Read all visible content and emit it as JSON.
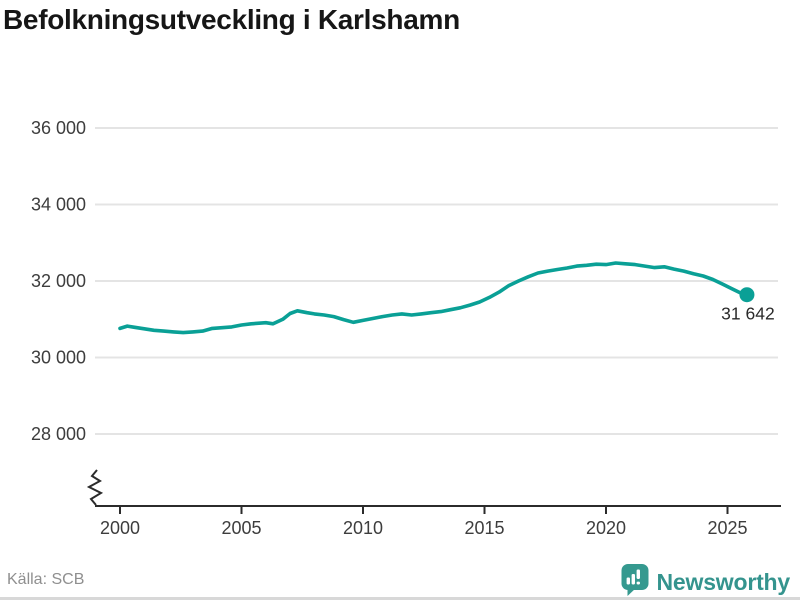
{
  "title": "Befolkningsutveckling i Karlshamn",
  "source": "Källa: SCB",
  "branding": {
    "name": "Newsworthy",
    "icon": "newsworthy-speech-bubble-barchart-icon",
    "text_color": "#35948e",
    "icon_bg": "#35998f"
  },
  "colors": {
    "line": "#0aa096",
    "grid": "#e4e4e4",
    "axis": "#2b2b2b",
    "tick_text": "#3d3d3d",
    "end_label_text": "#2b2b2b"
  },
  "chart_data": {
    "type": "line",
    "title": "Befolkningsutveckling i Karlshamn",
    "xlabel": "",
    "ylabel": "",
    "grid": "horizontal",
    "legend": "none",
    "axis_break": true,
    "xlim": [
      1999.5,
      2027
    ],
    "ylim": [
      28000,
      36000
    ],
    "x_ticks": [
      {
        "value": 2000,
        "label": "2000"
      },
      {
        "value": 2005,
        "label": "2005"
      },
      {
        "value": 2010,
        "label": "2010"
      },
      {
        "value": 2015,
        "label": "2015"
      },
      {
        "value": 2020,
        "label": "2020"
      },
      {
        "value": 2025,
        "label": "2025"
      }
    ],
    "y_ticks": [
      {
        "value": 28000,
        "label": "28 000"
      },
      {
        "value": 30000,
        "label": "30 000"
      },
      {
        "value": 32000,
        "label": "32 000"
      },
      {
        "value": 34000,
        "label": "34 000"
      },
      {
        "value": 36000,
        "label": "36 000"
      }
    ],
    "series": [
      {
        "name": "population",
        "color": "#0aa096",
        "end_label": "31 642",
        "end_value": 31642,
        "points": [
          [
            2000.0,
            30760
          ],
          [
            2000.3,
            30820
          ],
          [
            2000.6,
            30790
          ],
          [
            2001.0,
            30750
          ],
          [
            2001.4,
            30710
          ],
          [
            2001.8,
            30690
          ],
          [
            2002.2,
            30670
          ],
          [
            2002.6,
            30650
          ],
          [
            2003.0,
            30670
          ],
          [
            2003.4,
            30690
          ],
          [
            2003.8,
            30760
          ],
          [
            2004.2,
            30780
          ],
          [
            2004.6,
            30800
          ],
          [
            2005.0,
            30850
          ],
          [
            2005.4,
            30880
          ],
          [
            2006.0,
            30910
          ],
          [
            2006.3,
            30880
          ],
          [
            2006.7,
            31000
          ],
          [
            2007.0,
            31150
          ],
          [
            2007.3,
            31220
          ],
          [
            2007.7,
            31170
          ],
          [
            2008.0,
            31140
          ],
          [
            2008.4,
            31110
          ],
          [
            2008.8,
            31070
          ],
          [
            2009.2,
            30990
          ],
          [
            2009.6,
            30920
          ],
          [
            2010.0,
            30970
          ],
          [
            2010.4,
            31020
          ],
          [
            2010.8,
            31070
          ],
          [
            2011.2,
            31110
          ],
          [
            2011.6,
            31140
          ],
          [
            2012.0,
            31110
          ],
          [
            2012.4,
            31140
          ],
          [
            2012.8,
            31170
          ],
          [
            2013.2,
            31200
          ],
          [
            2013.6,
            31250
          ],
          [
            2014.0,
            31300
          ],
          [
            2014.4,
            31370
          ],
          [
            2014.8,
            31450
          ],
          [
            2015.2,
            31570
          ],
          [
            2015.6,
            31710
          ],
          [
            2016.0,
            31880
          ],
          [
            2016.4,
            32000
          ],
          [
            2016.8,
            32110
          ],
          [
            2017.2,
            32210
          ],
          [
            2017.6,
            32260
          ],
          [
            2018.0,
            32300
          ],
          [
            2018.4,
            32340
          ],
          [
            2018.8,
            32390
          ],
          [
            2019.2,
            32410
          ],
          [
            2019.6,
            32440
          ],
          [
            2020.0,
            32430
          ],
          [
            2020.4,
            32470
          ],
          [
            2020.8,
            32450
          ],
          [
            2021.2,
            32430
          ],
          [
            2021.6,
            32390
          ],
          [
            2022.0,
            32350
          ],
          [
            2022.4,
            32370
          ],
          [
            2022.8,
            32310
          ],
          [
            2023.2,
            32260
          ],
          [
            2023.6,
            32190
          ],
          [
            2024.0,
            32130
          ],
          [
            2024.4,
            32040
          ],
          [
            2024.8,
            31920
          ],
          [
            2025.2,
            31790
          ],
          [
            2025.5,
            31700
          ],
          [
            2025.8,
            31642
          ]
        ]
      }
    ]
  }
}
